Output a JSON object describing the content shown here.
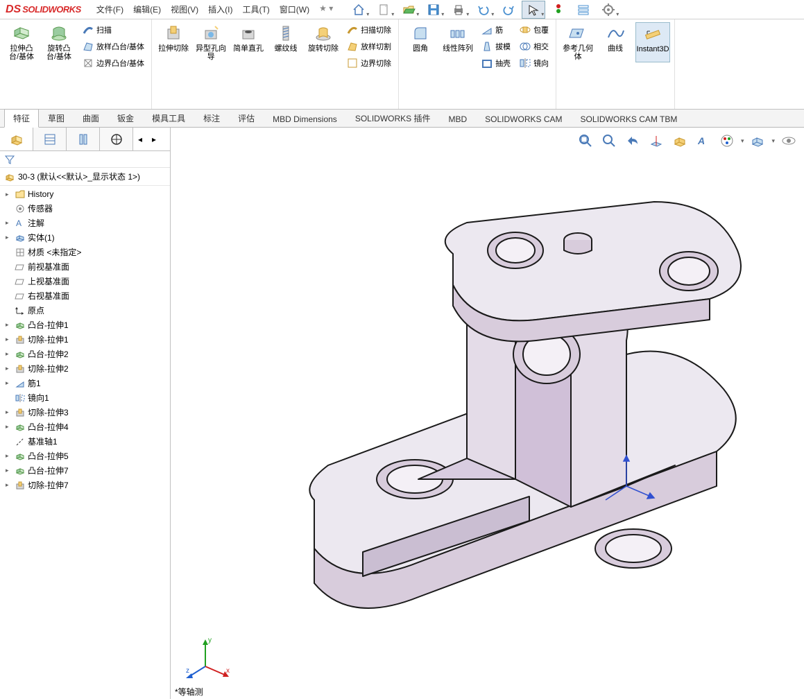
{
  "app": {
    "brand": "SOLIDWORKS",
    "ds": "DS"
  },
  "menus": {
    "file": "文件(F)",
    "edit": "编辑(E)",
    "view": "视图(V)",
    "insert": "插入(I)",
    "tools": "工具(T)",
    "window": "窗口(W)"
  },
  "quickbar": {
    "home": "home-icon",
    "new": "new-icon",
    "open": "open-icon",
    "save": "save-icon",
    "print": "print-icon",
    "undo": "undo-icon",
    "redo": "redo-icon",
    "select": "select-arrow-icon",
    "traffic": "traffic-light-icon",
    "options": "options-icon",
    "settings": "gear-icon"
  },
  "ribbon": {
    "group1": {
      "extrude_boss": "拉伸凸台/基体",
      "revolve_boss": "旋转凸台/基体",
      "sweep": "扫描",
      "loft": "放样凸台/基体",
      "boundary": "边界凸台/基体"
    },
    "group2": {
      "extrude_cut": "拉伸切除",
      "hole_wizard": "异型孔向导",
      "simple_hole": "简单直孔",
      "thread": "螺纹线",
      "revolve_cut": "旋转切除",
      "sweep_cut": "扫描切除",
      "loft_cut": "放样切割",
      "boundary_cut": "边界切除"
    },
    "group3": {
      "fillet": "圆角",
      "linear_pattern": "线性阵列",
      "rib": "筋",
      "draft": "拔模",
      "wrap": "包覆",
      "intersect": "相交",
      "shell": "抽壳",
      "mirror": "镜向"
    },
    "group4": {
      "ref_geom": "参考几何体",
      "curves": "曲线",
      "instant3d": "Instant3D"
    }
  },
  "tabs": {
    "items": [
      {
        "label": "特征",
        "active": true
      },
      {
        "label": "草图"
      },
      {
        "label": "曲面"
      },
      {
        "label": "钣金"
      },
      {
        "label": "模具工具"
      },
      {
        "label": "标注"
      },
      {
        "label": "评估"
      },
      {
        "label": "MBD Dimensions"
      },
      {
        "label": "SOLIDWORKS 插件"
      },
      {
        "label": "MBD"
      },
      {
        "label": "SOLIDWORKS CAM"
      },
      {
        "label": "SOLIDWORKS CAM TBM"
      }
    ]
  },
  "sidebar": {
    "part_name": "30-3 (默认<<默认>_显示状态 1>)",
    "nodes": [
      {
        "icon": "folder",
        "label": "History",
        "exp": "▸"
      },
      {
        "icon": "sensor",
        "label": "传感器",
        "exp": ""
      },
      {
        "icon": "annot",
        "label": "注解",
        "exp": "▸"
      },
      {
        "icon": "solid",
        "label": "实体(1)",
        "exp": "▸"
      },
      {
        "icon": "material",
        "label": "材质 <未指定>",
        "exp": ""
      },
      {
        "icon": "plane",
        "label": "前视基准面",
        "exp": ""
      },
      {
        "icon": "plane",
        "label": "上视基准面",
        "exp": ""
      },
      {
        "icon": "plane",
        "label": "右视基准面",
        "exp": ""
      },
      {
        "icon": "origin",
        "label": "原点",
        "exp": ""
      },
      {
        "icon": "boss",
        "label": "凸台-拉伸1",
        "exp": "▸"
      },
      {
        "icon": "cut",
        "label": "切除-拉伸1",
        "exp": "▸"
      },
      {
        "icon": "boss",
        "label": "凸台-拉伸2",
        "exp": "▸"
      },
      {
        "icon": "cut",
        "label": "切除-拉伸2",
        "exp": "▸"
      },
      {
        "icon": "rib",
        "label": "筋1",
        "exp": "▸"
      },
      {
        "icon": "mirror",
        "label": "镜向1",
        "exp": ""
      },
      {
        "icon": "cut",
        "label": "切除-拉伸3",
        "exp": "▸"
      },
      {
        "icon": "boss",
        "label": "凸台-拉伸4",
        "exp": "▸"
      },
      {
        "icon": "axis",
        "label": "基准轴1",
        "exp": ""
      },
      {
        "icon": "boss",
        "label": "凸台-拉伸5",
        "exp": "▸"
      },
      {
        "icon": "boss",
        "label": "凸台-拉伸7",
        "exp": "▸"
      },
      {
        "icon": "cut",
        "label": "切除-拉伸7",
        "exp": "▸"
      }
    ]
  },
  "viewtools": {
    "items": [
      "zoom-fit-icon",
      "zoom-area-icon",
      "prev-view-icon",
      "section-icon",
      "dynamic-icon",
      "display-state-icon",
      "appearance-icon",
      "display-style-icon",
      "hide-show-icon"
    ]
  },
  "status": {
    "view_label": "*等轴测"
  },
  "triad": {
    "x": "x",
    "y": "y",
    "z": "z"
  },
  "colors": {
    "brand": "#d82a2a",
    "border": "#c0c0c0",
    "hover": "#e8f0fa",
    "selected": "#dde9f5",
    "tabactive": "#ffffff",
    "tabbg": "#f4f4f4",
    "model_face": "#e8e4ec",
    "model_shadow": "#c8bcd4",
    "model_edge": "#1a1a1a",
    "axis_x": "#d02020",
    "axis_y": "#20a020",
    "axis_z": "#2060d0",
    "origin_arrow": "#3050d0"
  }
}
